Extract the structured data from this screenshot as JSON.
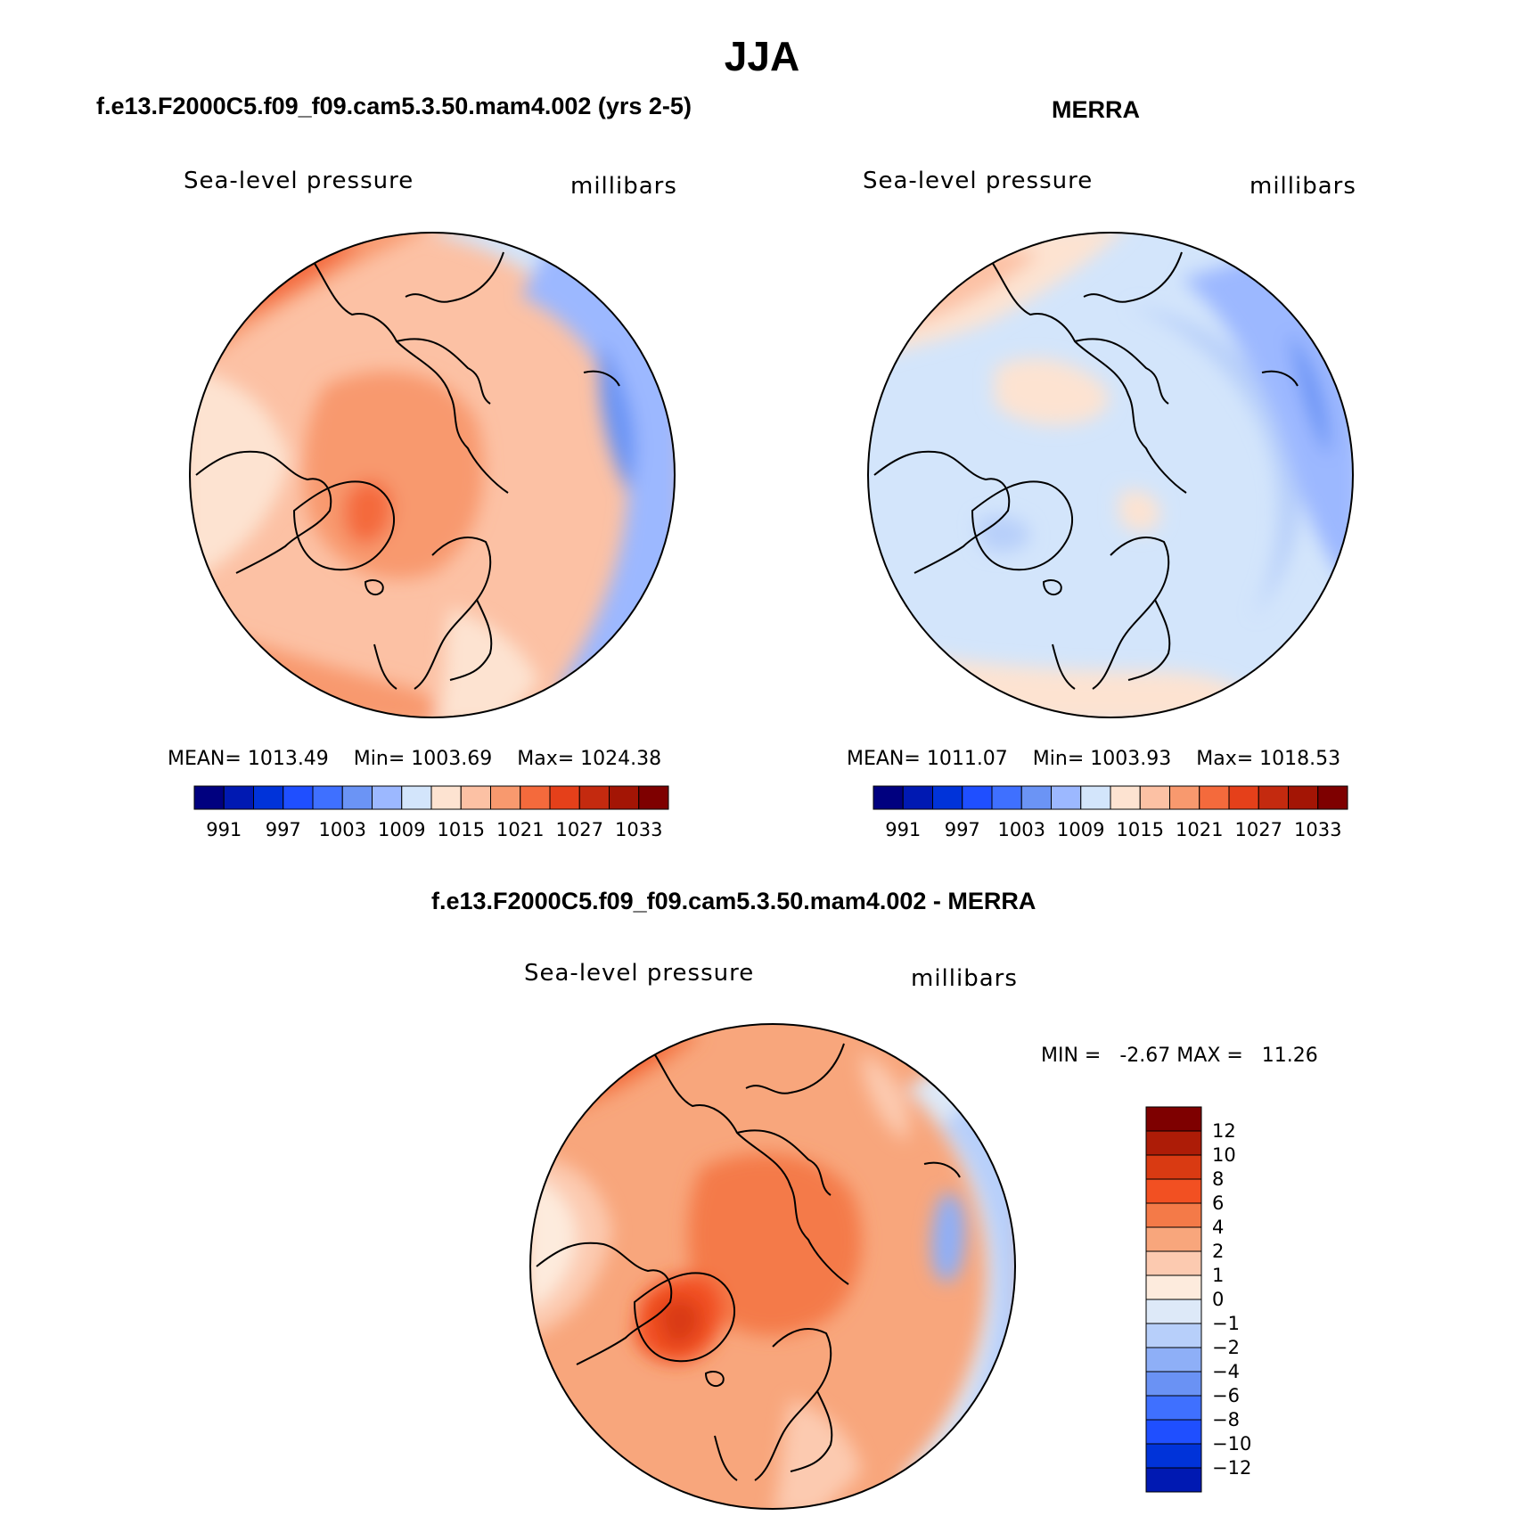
{
  "figure": {
    "title": "JJA"
  },
  "panels": [
    {
      "title": "f.e13.F2000C5.f09_f09.cam5.3.50.mam4.002 (yrs 2-5)",
      "variable": "Sea-level pressure",
      "units": "millibars",
      "stats": {
        "mean_label": "MEAN=",
        "mean": "1013.49",
        "min_label": "Min=",
        "min": "1003.69",
        "max_label": "Max=",
        "max": "1024.38"
      }
    },
    {
      "title": "MERRA",
      "variable": "Sea-level pressure",
      "units": "millibars",
      "stats": {
        "mean_label": "MEAN=",
        "mean": "1011.07",
        "min_label": "Min=",
        "min": "1003.93",
        "max_label": "Max=",
        "max": "1018.53"
      }
    },
    {
      "title": "f.e13.F2000C5.f09_f09.cam5.3.50.mam4.002 - MERRA",
      "variable": "Sea-level pressure",
      "units": "millibars",
      "stats": {
        "min_label": "MIN =",
        "min": "-2.67",
        "max_label": "MAX =",
        "max": "11.26"
      }
    }
  ],
  "colorbar_abs": {
    "colors": [
      "#00007f",
      "#0019b2",
      "#0033d9",
      "#1f4fff",
      "#3f70ff",
      "#6b94f5",
      "#9cb8ff",
      "#d3e5fb",
      "#fde3d1",
      "#fcc1a4",
      "#f8996e",
      "#f46a3c",
      "#e5401a",
      "#c42a0f",
      "#a31505",
      "#7e0000"
    ],
    "labels": [
      "991",
      "997",
      "1003",
      "1009",
      "1015",
      "1021",
      "1027",
      "1033"
    ]
  },
  "colorbar_diff": {
    "colors": [
      "#7e0000",
      "#ad1c07",
      "#d93a12",
      "#f25022",
      "#f47a48",
      "#f8a67c",
      "#fccab0",
      "#fdebdd",
      "#dde9f8",
      "#b7cffa",
      "#8eaff7",
      "#6a92f4",
      "#3f70ff",
      "#1f4fff",
      "#0033d9",
      "#0019b2"
    ],
    "labels": [
      "12",
      "10",
      "8",
      "6",
      "4",
      "2",
      "1",
      "0",
      "−1",
      "−2",
      "−4",
      "−6",
      "−8",
      "−10",
      "−12"
    ]
  },
  "chart_data": [
    {
      "type": "heatmap",
      "title": "f.e13.F2000C5.f09_f09.cam5.3.50.mam4.002 (yrs 2-5)",
      "variable": "Sea-level pressure",
      "units": "millibars",
      "projection": "polar stereographic, north pole",
      "contour_levels": [
        991,
        994,
        997,
        1000,
        1003,
        1006,
        1009,
        1012,
        1015,
        1018,
        1021,
        1024,
        1027,
        1030,
        1033
      ],
      "mean": 1013.49,
      "min": 1003.69,
      "max": 1024.38
    },
    {
      "type": "heatmap",
      "title": "MERRA",
      "variable": "Sea-level pressure",
      "units": "millibars",
      "projection": "polar stereographic, north pole",
      "contour_levels": [
        991,
        994,
        997,
        1000,
        1003,
        1006,
        1009,
        1012,
        1015,
        1018,
        1021,
        1024,
        1027,
        1030,
        1033
      ],
      "mean": 1011.07,
      "min": 1003.93,
      "max": 1018.53
    },
    {
      "type": "heatmap",
      "title": "f.e13.F2000C5.f09_f09.cam5.3.50.mam4.002 - MERRA",
      "variable": "Sea-level pressure",
      "units": "millibars",
      "projection": "polar stereographic, north pole",
      "contour_levels": [
        -12,
        -10,
        -8,
        -6,
        -4,
        -2,
        -1,
        0,
        1,
        2,
        4,
        6,
        8,
        10,
        12
      ],
      "min": -2.67,
      "max": 11.26
    }
  ]
}
